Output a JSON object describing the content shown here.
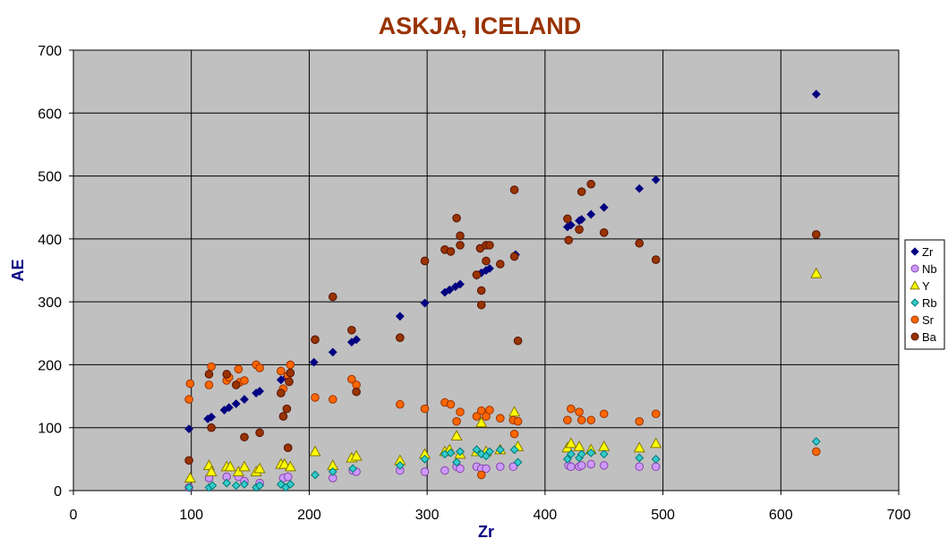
{
  "chart_data": {
    "type": "scatter",
    "title": "ASKJA, ICELAND",
    "xlabel": "Zr",
    "ylabel": "AE",
    "xlim": [
      0,
      700
    ],
    "ylim": [
      0,
      700
    ],
    "xticks": [
      "0",
      "100",
      "200",
      "300",
      "400",
      "500",
      "600",
      "700"
    ],
    "yticks": [
      "0",
      "100",
      "200",
      "300",
      "400",
      "500",
      "600",
      "700"
    ],
    "grid": true,
    "legend_position": "right",
    "series": [
      {
        "name": "Zr",
        "marker": "diamond",
        "color": "#000080",
        "stroke": "#000080",
        "points": [
          [
            98,
            98
          ],
          [
            114,
            114
          ],
          [
            117,
            117
          ],
          [
            128,
            128
          ],
          [
            132,
            132
          ],
          [
            138,
            138
          ],
          [
            145,
            145
          ],
          [
            155,
            155
          ],
          [
            158,
            158
          ],
          [
            176,
            176
          ],
          [
            181,
            181
          ],
          [
            204,
            204
          ],
          [
            220,
            220
          ],
          [
            236,
            236
          ],
          [
            240,
            240
          ],
          [
            277,
            277
          ],
          [
            298,
            298
          ],
          [
            315,
            315
          ],
          [
            319,
            319
          ],
          [
            324,
            324
          ],
          [
            328,
            328
          ],
          [
            342,
            342
          ],
          [
            346,
            346
          ],
          [
            350,
            350
          ],
          [
            353,
            353
          ],
          [
            375,
            375
          ],
          [
            419,
            419
          ],
          [
            422,
            422
          ],
          [
            429,
            429
          ],
          [
            431,
            431
          ],
          [
            439,
            439
          ],
          [
            450,
            450
          ],
          [
            480,
            480
          ],
          [
            494,
            494
          ],
          [
            630,
            630
          ]
        ]
      },
      {
        "name": "Nb",
        "marker": "circle",
        "color": "#CC99FF",
        "stroke": "#8844aa",
        "points": [
          [
            98,
            5
          ],
          [
            115,
            20
          ],
          [
            130,
            22
          ],
          [
            140,
            22
          ],
          [
            145,
            15
          ],
          [
            158,
            12
          ],
          [
            178,
            20
          ],
          [
            182,
            22
          ],
          [
            220,
            20
          ],
          [
            237,
            32
          ],
          [
            240,
            30
          ],
          [
            277,
            32
          ],
          [
            298,
            30
          ],
          [
            315,
            32
          ],
          [
            325,
            38
          ],
          [
            328,
            35
          ],
          [
            342,
            38
          ],
          [
            346,
            35
          ],
          [
            350,
            35
          ],
          [
            362,
            38
          ],
          [
            373,
            38
          ],
          [
            420,
            40
          ],
          [
            422,
            38
          ],
          [
            429,
            38
          ],
          [
            431,
            40
          ],
          [
            439,
            42
          ],
          [
            450,
            40
          ],
          [
            480,
            38
          ],
          [
            494,
            38
          ]
        ]
      },
      {
        "name": "Y",
        "marker": "triangle",
        "color": "#FFFF00",
        "stroke": "#887700",
        "points": [
          [
            99,
            20
          ],
          [
            115,
            40
          ],
          [
            117,
            30
          ],
          [
            130,
            38
          ],
          [
            133,
            38
          ],
          [
            140,
            30
          ],
          [
            145,
            38
          ],
          [
            155,
            30
          ],
          [
            158,
            35
          ],
          [
            176,
            42
          ],
          [
            179,
            42
          ],
          [
            184,
            38
          ],
          [
            205,
            62
          ],
          [
            220,
            40
          ],
          [
            236,
            52
          ],
          [
            240,
            55
          ],
          [
            277,
            48
          ],
          [
            298,
            58
          ],
          [
            315,
            62
          ],
          [
            319,
            65
          ],
          [
            325,
            87
          ],
          [
            328,
            58
          ],
          [
            342,
            62
          ],
          [
            346,
            108
          ],
          [
            350,
            62
          ],
          [
            362,
            65
          ],
          [
            374,
            125
          ],
          [
            377,
            70
          ],
          [
            419,
            68
          ],
          [
            422,
            75
          ],
          [
            429,
            70
          ],
          [
            439,
            65
          ],
          [
            450,
            70
          ],
          [
            480,
            68
          ],
          [
            494,
            75
          ],
          [
            630,
            345
          ]
        ]
      },
      {
        "name": "Rb",
        "marker": "diamond",
        "color": "#33CCCC",
        "stroke": "#007777",
        "points": [
          [
            98,
            5
          ],
          [
            115,
            5
          ],
          [
            118,
            8
          ],
          [
            130,
            12
          ],
          [
            138,
            8
          ],
          [
            145,
            10
          ],
          [
            155,
            5
          ],
          [
            158,
            8
          ],
          [
            176,
            10
          ],
          [
            180,
            5
          ],
          [
            184,
            10
          ],
          [
            205,
            25
          ],
          [
            220,
            30
          ],
          [
            237,
            35
          ],
          [
            277,
            40
          ],
          [
            298,
            50
          ],
          [
            315,
            58
          ],
          [
            320,
            60
          ],
          [
            325,
            45
          ],
          [
            328,
            62
          ],
          [
            342,
            65
          ],
          [
            346,
            58
          ],
          [
            350,
            55
          ],
          [
            353,
            62
          ],
          [
            362,
            65
          ],
          [
            374,
            65
          ],
          [
            377,
            45
          ],
          [
            419,
            50
          ],
          [
            422,
            58
          ],
          [
            429,
            52
          ],
          [
            431,
            58
          ],
          [
            439,
            60
          ],
          [
            450,
            58
          ],
          [
            480,
            52
          ],
          [
            494,
            50
          ],
          [
            630,
            78
          ]
        ]
      },
      {
        "name": "Sr",
        "marker": "circle",
        "color": "#FF6600",
        "stroke": "#993300",
        "points": [
          [
            98,
            145
          ],
          [
            99,
            170
          ],
          [
            115,
            168
          ],
          [
            117,
            197
          ],
          [
            130,
            175
          ],
          [
            132,
            180
          ],
          [
            140,
            193
          ],
          [
            141,
            172
          ],
          [
            145,
            175
          ],
          [
            155,
            200
          ],
          [
            158,
            195
          ],
          [
            176,
            190
          ],
          [
            178,
            162
          ],
          [
            182,
            183
          ],
          [
            184,
            200
          ],
          [
            205,
            148
          ],
          [
            220,
            145
          ],
          [
            236,
            177
          ],
          [
            240,
            168
          ],
          [
            277,
            137
          ],
          [
            298,
            130
          ],
          [
            315,
            140
          ],
          [
            320,
            137
          ],
          [
            325,
            110
          ],
          [
            328,
            125
          ],
          [
            342,
            118
          ],
          [
            346,
            127
          ],
          [
            350,
            118
          ],
          [
            353,
            128
          ],
          [
            362,
            115
          ],
          [
            373,
            112
          ],
          [
            377,
            110
          ],
          [
            419,
            112
          ],
          [
            422,
            130
          ],
          [
            429,
            125
          ],
          [
            431,
            112
          ],
          [
            439,
            112
          ],
          [
            450,
            122
          ],
          [
            480,
            110
          ],
          [
            494,
            122
          ],
          [
            346,
            25
          ],
          [
            374,
            90
          ],
          [
            630,
            62
          ]
        ]
      },
      {
        "name": "Ba",
        "marker": "circle",
        "color": "#993300",
        "stroke": "#551100",
        "points": [
          [
            98,
            48
          ],
          [
            115,
            185
          ],
          [
            117,
            100
          ],
          [
            130,
            185
          ],
          [
            138,
            168
          ],
          [
            145,
            85
          ],
          [
            158,
            92
          ],
          [
            176,
            155
          ],
          [
            178,
            118
          ],
          [
            181,
            130
          ],
          [
            182,
            68
          ],
          [
            184,
            187
          ],
          [
            183,
            173
          ],
          [
            205,
            240
          ],
          [
            220,
            308
          ],
          [
            236,
            255
          ],
          [
            240,
            157
          ],
          [
            277,
            243
          ],
          [
            298,
            365
          ],
          [
            315,
            383
          ],
          [
            320,
            380
          ],
          [
            325,
            433
          ],
          [
            328,
            405
          ],
          [
            328,
            390
          ],
          [
            342,
            343
          ],
          [
            345,
            385
          ],
          [
            346,
            318
          ],
          [
            346,
            295
          ],
          [
            350,
            390
          ],
          [
            350,
            365
          ],
          [
            353,
            390
          ],
          [
            362,
            360
          ],
          [
            374,
            372
          ],
          [
            374,
            478
          ],
          [
            377,
            238
          ],
          [
            419,
            432
          ],
          [
            420,
            398
          ],
          [
            429,
            415
          ],
          [
            431,
            475
          ],
          [
            439,
            487
          ],
          [
            450,
            410
          ],
          [
            480,
            393
          ],
          [
            494,
            367
          ],
          [
            630,
            407
          ]
        ]
      }
    ]
  },
  "colors": {
    "title": "#993300",
    "axis_label": "#000080",
    "plot_background": "#C0C0C0",
    "grid": "#000000"
  }
}
